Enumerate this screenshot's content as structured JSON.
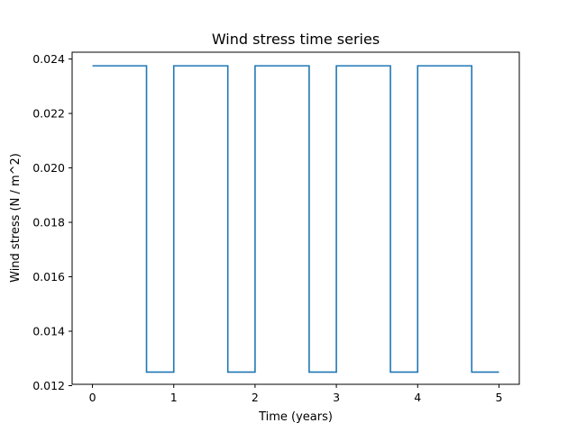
{
  "chart_data": {
    "type": "line",
    "title": "Wind stress time series",
    "xlabel": "Time (years)",
    "ylabel": "Wind stress (N / m^2)",
    "xlim": [
      -0.25,
      5.25
    ],
    "ylim": [
      0.01205,
      0.02425
    ],
    "x_ticks": [
      0,
      1,
      2,
      3,
      4,
      5
    ],
    "x_tick_labels": [
      "0",
      "1",
      "2",
      "3",
      "4",
      "5"
    ],
    "y_ticks": [
      0.012,
      0.014,
      0.016,
      0.018,
      0.02,
      0.022,
      0.024
    ],
    "y_tick_labels": [
      "0.012",
      "0.014",
      "0.016",
      "0.018",
      "0.020",
      "0.022",
      "0.024"
    ],
    "grid": false,
    "line_style": "step",
    "series": [
      {
        "color": "#1f77b4",
        "x": [
          0,
          0.665,
          0.665,
          1.0,
          1.0,
          1.665,
          1.665,
          2.0,
          2.0,
          2.665,
          2.665,
          3.0,
          3.0,
          3.665,
          3.665,
          4.0,
          4.0,
          4.665,
          4.665,
          5.0
        ],
        "y": [
          0.02375,
          0.02375,
          0.0125,
          0.0125,
          0.02375,
          0.02375,
          0.0125,
          0.0125,
          0.02375,
          0.02375,
          0.0125,
          0.0125,
          0.02375,
          0.02375,
          0.0125,
          0.0125,
          0.02375,
          0.02375,
          0.0125,
          0.0125
        ]
      }
    ]
  }
}
